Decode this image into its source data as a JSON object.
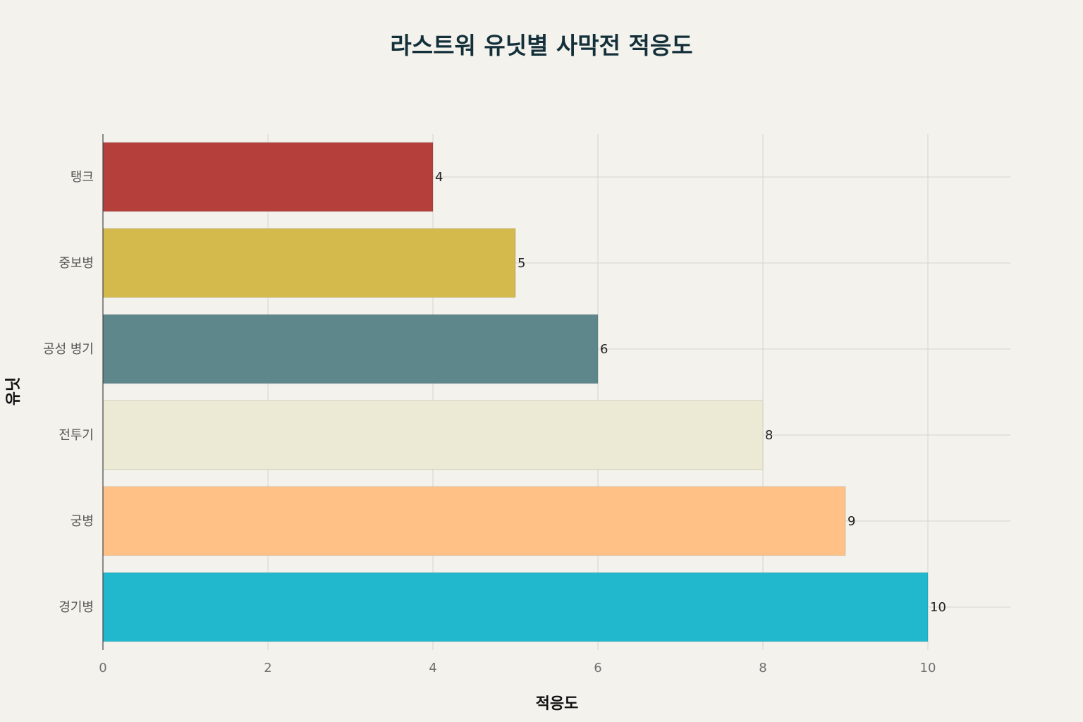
{
  "chart_data": {
    "type": "bar",
    "orientation": "horizontal",
    "title": "라스트워 유닛별 사막전 적응도",
    "xlabel": "적응도",
    "ylabel": "유닛",
    "categories": [
      "탱크",
      "중보병",
      "공성 병기",
      "전투기",
      "궁병",
      "경기병"
    ],
    "values": [
      4,
      5,
      6,
      8,
      9,
      10
    ],
    "colors": [
      "#b5403b",
      "#d4b94c",
      "#5e878c",
      "#ecead5",
      "#ffc185",
      "#21b7cc"
    ],
    "xlim": [
      0,
      11
    ],
    "xticks": [
      0,
      2,
      4,
      6,
      8,
      10
    ],
    "grid": true,
    "legend": "none"
  }
}
